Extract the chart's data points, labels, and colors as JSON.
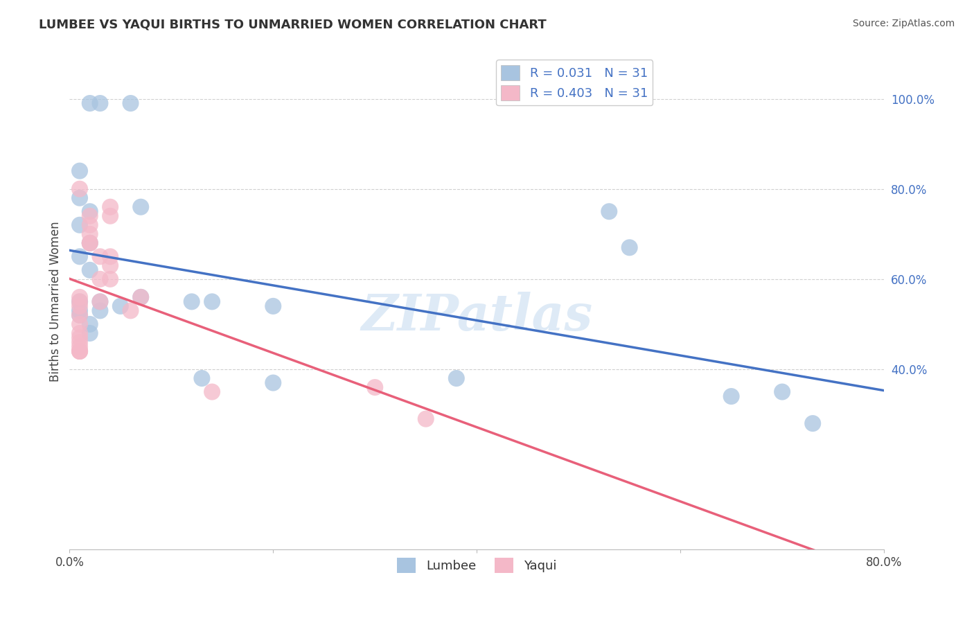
{
  "title": "LUMBEE VS YAQUI BIRTHS TO UNMARRIED WOMEN CORRELATION CHART",
  "source": "Source: ZipAtlas.com",
  "ylabel": "Births to Unmarried Women",
  "xlim": [
    0.0,
    0.8
  ],
  "ylim": [
    0.0,
    1.1
  ],
  "lumbee_R": "0.031",
  "lumbee_N": "31",
  "yaqui_R": "0.403",
  "yaqui_N": "31",
  "lumbee_color": "#a8c4e0",
  "yaqui_color": "#f4b8c8",
  "lumbee_line_color": "#4472c4",
  "yaqui_line_color": "#e8607a",
  "watermark_color": "#c8ddf0",
  "grid_color": "#d0d0d0",
  "ytick_color": "#4472c4",
  "lumbee_scatter_x": [
    0.02,
    0.03,
    0.06,
    0.01,
    0.01,
    0.02,
    0.01,
    0.02,
    0.01,
    0.02,
    0.01,
    0.01,
    0.01,
    0.02,
    0.02,
    0.03,
    0.03,
    0.05,
    0.07,
    0.12,
    0.14,
    0.13,
    0.2,
    0.2,
    0.38,
    0.53,
    0.55,
    0.65,
    0.7,
    0.73,
    0.07
  ],
  "lumbee_scatter_y": [
    0.99,
    0.99,
    0.99,
    0.84,
    0.78,
    0.75,
    0.72,
    0.68,
    0.65,
    0.62,
    0.55,
    0.53,
    0.52,
    0.5,
    0.48,
    0.55,
    0.53,
    0.54,
    0.56,
    0.55,
    0.55,
    0.38,
    0.37,
    0.54,
    0.38,
    0.75,
    0.67,
    0.34,
    0.35,
    0.28,
    0.76
  ],
  "yaqui_scatter_x": [
    0.01,
    0.01,
    0.01,
    0.01,
    0.01,
    0.01,
    0.01,
    0.01,
    0.01,
    0.01,
    0.01,
    0.01,
    0.01,
    0.02,
    0.02,
    0.02,
    0.02,
    0.02,
    0.03,
    0.03,
    0.03,
    0.04,
    0.04,
    0.06,
    0.07,
    0.04,
    0.04,
    0.04,
    0.14,
    0.3,
    0.35
  ],
  "yaqui_scatter_y": [
    0.44,
    0.44,
    0.44,
    0.45,
    0.46,
    0.47,
    0.48,
    0.5,
    0.52,
    0.54,
    0.55,
    0.56,
    0.8,
    0.68,
    0.68,
    0.7,
    0.72,
    0.74,
    0.55,
    0.6,
    0.65,
    0.74,
    0.76,
    0.53,
    0.56,
    0.6,
    0.63,
    0.65,
    0.35,
    0.36,
    0.29
  ],
  "xtick_positions": [
    0.0,
    0.2,
    0.4,
    0.6,
    0.8
  ],
  "ytick_positions": [
    0.4,
    0.6,
    0.8,
    1.0
  ],
  "background_color": "#ffffff"
}
